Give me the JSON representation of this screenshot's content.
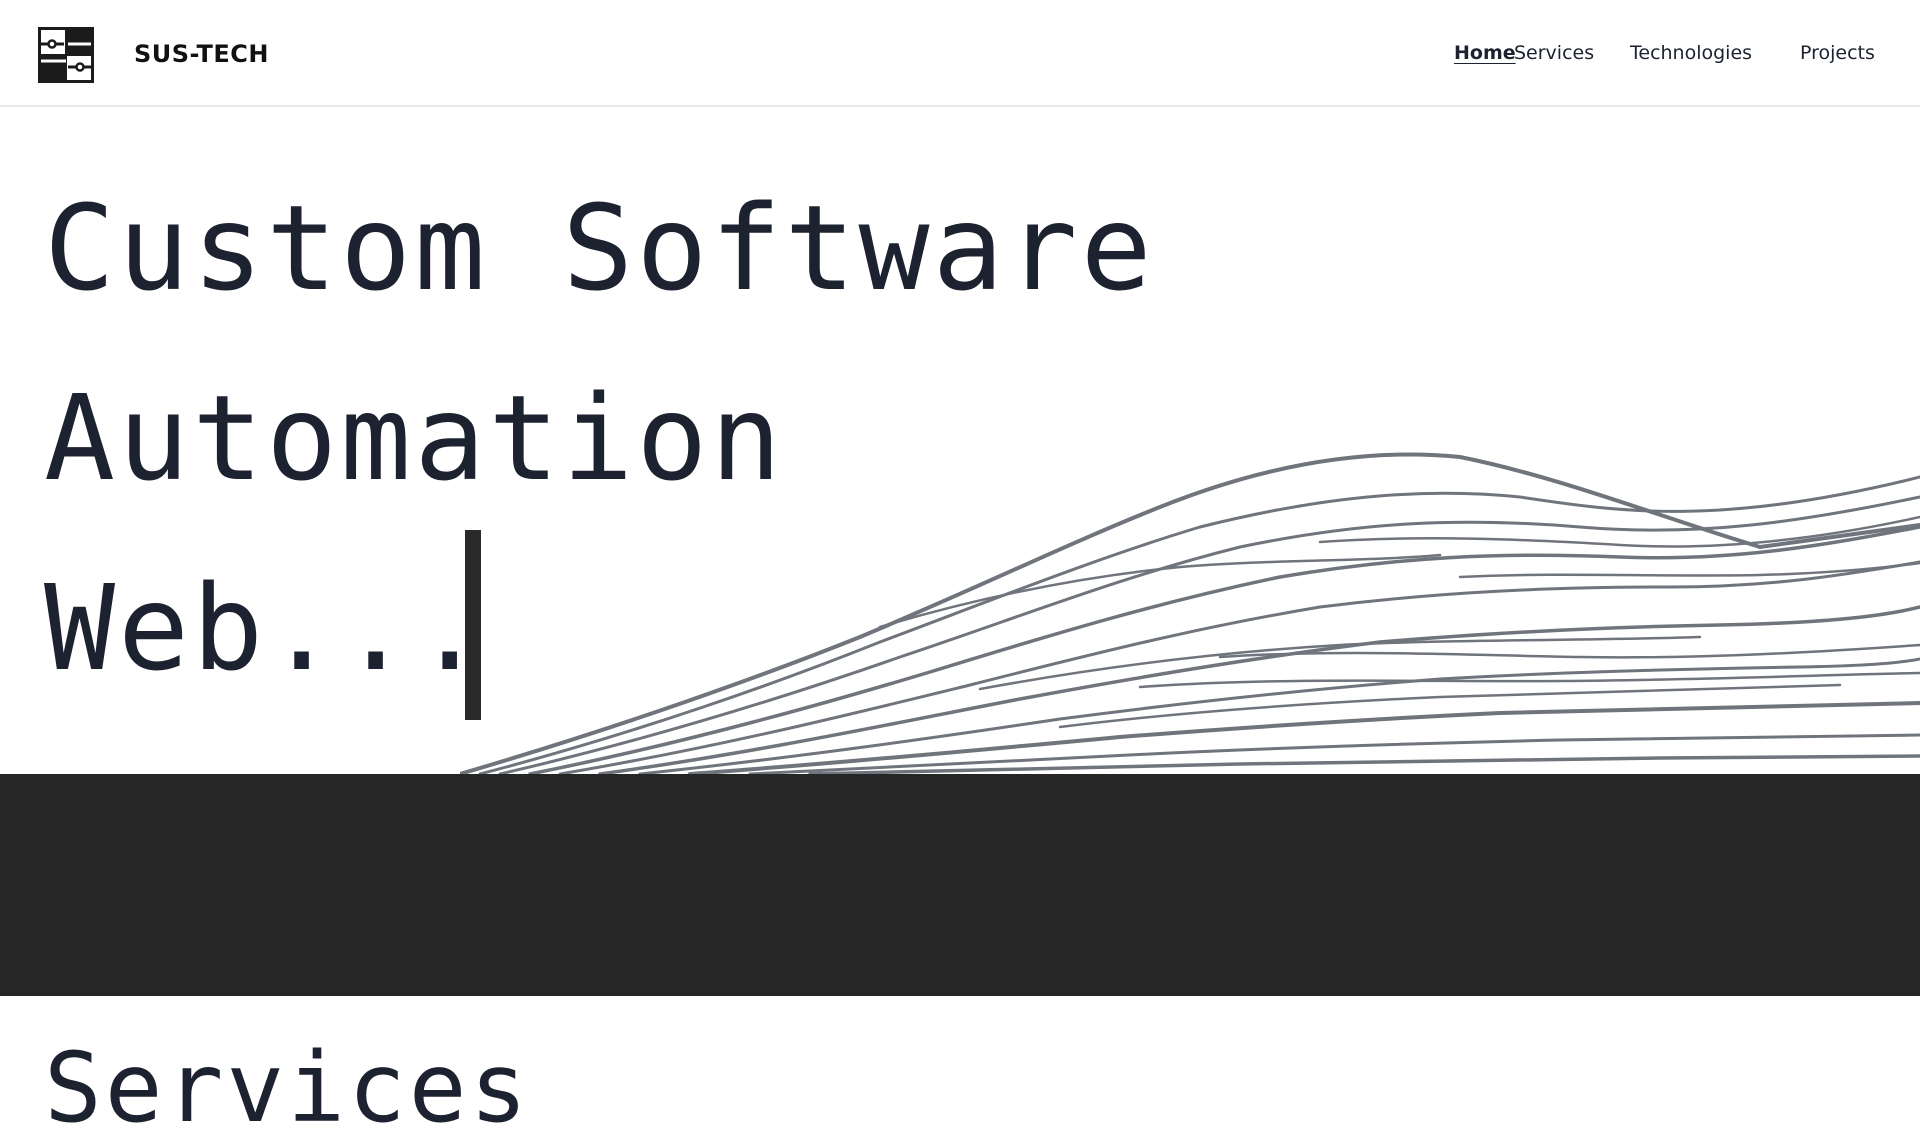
{
  "header": {
    "brand": "SUS-TECH",
    "logo_icon": "circuit-logo-icon",
    "nav": [
      {
        "label": "Home",
        "active": true
      },
      {
        "label": "Services",
        "active": false
      },
      {
        "label": "Technologies",
        "active": false
      },
      {
        "label": "Projects",
        "active": false
      }
    ]
  },
  "hero": {
    "lines": [
      "Custom Software",
      "Automation",
      "Web..."
    ],
    "art_icon": "topographic-waves-illustration"
  },
  "section": {
    "heading": "Services"
  },
  "colors": {
    "text": "#1c2230",
    "band": "#262626",
    "wave_stroke": "#70747c"
  }
}
